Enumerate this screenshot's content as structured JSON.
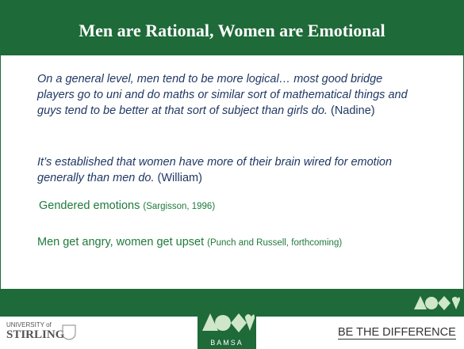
{
  "header": {
    "title": "Men are Rational, Women are Emotional"
  },
  "quotes": [
    {
      "text": "On a general level, men tend to be more logical… most good bridge players go to uni and do maths or similar sort of mathematical things and guys tend to be better at that sort of subject than girls do.",
      "speaker": "(Nadine)"
    },
    {
      "text": "It’s established that women have more of their brain wired for emotion generally than men do.",
      "speaker": "(William)"
    }
  ],
  "points": [
    {
      "text": "Gendered emotions",
      "citation": "(Sargisson, 1996)"
    },
    {
      "text": "Men get angry, women get upset",
      "citation": "(Punch and Russell, forthcoming)"
    }
  ],
  "footer": {
    "university_prefix": "UNIVERSITY of",
    "university": "STIRLING",
    "logo": "BAMSA",
    "tagline": "BE THE DIFFERENCE"
  }
}
